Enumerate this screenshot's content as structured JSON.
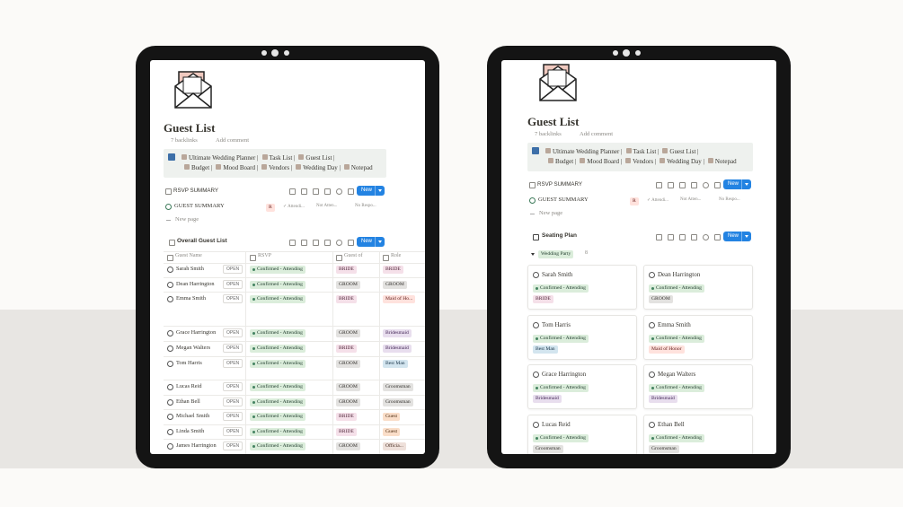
{
  "left": {
    "title": "Guest List",
    "backlinks": "7 backlinks",
    "add_comment": "Add comment",
    "nav": [
      "Ultimate Wedding Planner |",
      "Task List |",
      "Guest List |",
      "Budget |",
      "Mood Board |",
      "Vendors |",
      "Wedding Day |",
      "Notepad"
    ],
    "summary": {
      "label": "RSVP SUMMARY",
      "new": "New",
      "row": "GUEST SUMMARY",
      "tags": [
        "R",
        "✓ Attendi...",
        "Not Atten...",
        "No Respo..."
      ]
    },
    "new_page": "New page",
    "table": {
      "view": "Overall Guest List",
      "new": "New",
      "open": "OPEN",
      "headers": [
        "Guest Name",
        "RSVP",
        "Guest of",
        "Role"
      ],
      "rows": [
        [
          "Sarah Smith",
          "Confirmed - Attending",
          "BRIDE",
          "BRIDE"
        ],
        [
          "Dean Harrington",
          "Confirmed - Attending",
          "GROOM",
          "GROOM"
        ],
        [
          "Emma Smith",
          "Confirmed - Attending",
          "BRIDE",
          "Maid of Ho..."
        ],
        [
          "Grace Harrington",
          "Confirmed - Attending",
          "GROOM",
          "Bridesmaid"
        ],
        [
          "Megan Walters",
          "Confirmed - Attending",
          "BRIDE",
          "Bridesmaid"
        ],
        [
          "Tom Harris",
          "Confirmed - Attending",
          "GROOM",
          "Best Man"
        ],
        [
          "Lucas Reid",
          "Confirmed - Attending",
          "GROOM",
          "Groomsman"
        ],
        [
          "Ethan Bell",
          "Confirmed - Attending",
          "GROOM",
          "Groomsman"
        ],
        [
          "Michael Smith",
          "Confirmed - Attending",
          "BRIDE",
          "Guest"
        ],
        [
          "Linda Smith",
          "Confirmed - Attending",
          "BRIDE",
          "Guest"
        ],
        [
          "James Harrington",
          "Confirmed - Attending",
          "GROOM",
          "Officia..."
        ]
      ]
    }
  },
  "right": {
    "title": "Guest List",
    "backlinks": "7 backlinks",
    "add_comment": "Add comment",
    "nav": [
      "Ultimate Wedding Planner |",
      "Task List |",
      "Guest List |",
      "Budget |",
      "Mood Board |",
      "Vendors |",
      "Wedding Day |",
      "Notepad"
    ],
    "summary": {
      "label": "RSVP SUMMARY",
      "new": "New",
      "row": "GUEST SUMMARY",
      "tags": [
        "R",
        "✓ Attendi...",
        "Not Atten...",
        "No Respo..."
      ]
    },
    "new_page": "New page",
    "board": {
      "view": "Seating Plan",
      "new": "New",
      "group": "Wedding Party",
      "count": 8,
      "cards": [
        [
          "Sarah Smith",
          "Confirmed - Attending",
          "BRIDE"
        ],
        [
          "Dean Harrington",
          "Confirmed - Attending",
          "GROOM"
        ],
        [
          "Tom Harris",
          "Confirmed - Attending",
          "Best Man"
        ],
        [
          "Emma Smith",
          "Confirmed - Attending",
          "Maid of Honor"
        ],
        [
          "Grace Harrington",
          "Confirmed - Attending",
          "Bridesmaid"
        ],
        [
          "Megan Walters",
          "Confirmed - Attending",
          "Bridesmaid"
        ],
        [
          "Lucas Reid",
          "Confirmed - Attending",
          "Groomsman"
        ],
        [
          "Ethan Bell",
          "Confirmed - Attending",
          "Groomsman"
        ]
      ]
    }
  }
}
